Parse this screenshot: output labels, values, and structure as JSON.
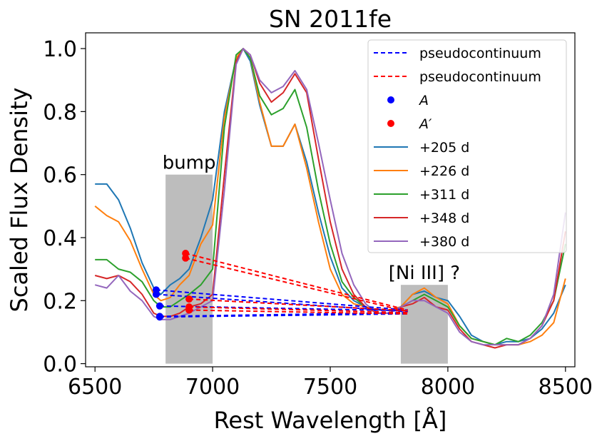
{
  "chart_data": {
    "type": "line",
    "title": "SN 2011fe",
    "xlabel": "Rest Wavelength [Å]",
    "ylabel": "Scaled Flux Density",
    "xlim": [
      6460,
      8540
    ],
    "ylim": [
      -0.01,
      1.05
    ],
    "xticks": [
      6500,
      7000,
      7500,
      8000,
      8500
    ],
    "xtick_labels": [
      "6500",
      "7000",
      "7500",
      "8000",
      "8500"
    ],
    "yticks": [
      0.0,
      0.2,
      0.4,
      0.6,
      0.8,
      1.0
    ],
    "ytick_labels": [
      "0.0",
      "0.2",
      "0.4",
      "0.6",
      "0.8",
      "1.0"
    ],
    "grid": false,
    "legend_position": "top-right",
    "regions": [
      {
        "label": "bump",
        "x0": 6800,
        "x1": 7000,
        "y0": 0.0,
        "y1": 0.6
      },
      {
        "label": "[Ni III] ?",
        "x0": 7800,
        "x1": 8000,
        "y0": 0.0,
        "y1": 0.25
      }
    ],
    "series": [
      {
        "name": "+205 d",
        "color": "#1f77b4",
        "x": [
          6500,
          6550,
          6600,
          6650,
          6700,
          6750,
          6780,
          6820,
          6860,
          6900,
          6950,
          7000,
          7050,
          7100,
          7130,
          7160,
          7200,
          7250,
          7300,
          7350,
          7400,
          7450,
          7500,
          7550,
          7600,
          7650,
          7700,
          7750,
          7800,
          7850,
          7900,
          7950,
          8000,
          8050,
          8100,
          8150,
          8200,
          8250,
          8300,
          8350,
          8400,
          8450,
          8500
        ],
        "y": [
          0.57,
          0.57,
          0.52,
          0.43,
          0.32,
          0.24,
          0.22,
          0.25,
          0.27,
          0.3,
          0.4,
          0.52,
          0.8,
          0.97,
          1.0,
          0.96,
          0.82,
          0.69,
          0.69,
          0.76,
          0.64,
          0.48,
          0.34,
          0.24,
          0.2,
          0.18,
          0.17,
          0.17,
          0.18,
          0.22,
          0.23,
          0.21,
          0.2,
          0.15,
          0.09,
          0.07,
          0.06,
          0.07,
          0.07,
          0.08,
          0.11,
          0.16,
          0.25
        ]
      },
      {
        "name": "+226 d",
        "color": "#ff7f0e",
        "x": [
          6500,
          6550,
          6600,
          6650,
          6700,
          6750,
          6780,
          6820,
          6860,
          6900,
          6950,
          7000,
          7050,
          7100,
          7130,
          7160,
          7200,
          7250,
          7300,
          7350,
          7400,
          7450,
          7500,
          7550,
          7600,
          7650,
          7700,
          7750,
          7800,
          7850,
          7900,
          7950,
          8000,
          8050,
          8100,
          8150,
          8200,
          8250,
          8300,
          8350,
          8400,
          8450,
          8500
        ],
        "y": [
          0.5,
          0.47,
          0.45,
          0.39,
          0.3,
          0.22,
          0.2,
          0.21,
          0.25,
          0.28,
          0.38,
          0.44,
          0.78,
          0.97,
          1.0,
          0.97,
          0.83,
          0.69,
          0.69,
          0.76,
          0.62,
          0.45,
          0.3,
          0.22,
          0.19,
          0.18,
          0.17,
          0.17,
          0.18,
          0.22,
          0.24,
          0.21,
          0.19,
          0.12,
          0.08,
          0.07,
          0.06,
          0.06,
          0.06,
          0.07,
          0.09,
          0.13,
          0.27
        ]
      },
      {
        "name": "+311 d",
        "color": "#2ca02c",
        "x": [
          6500,
          6550,
          6600,
          6650,
          6700,
          6750,
          6780,
          6820,
          6860,
          6900,
          6950,
          7000,
          7050,
          7100,
          7130,
          7160,
          7200,
          7250,
          7300,
          7350,
          7400,
          7450,
          7500,
          7550,
          7600,
          7650,
          7700,
          7750,
          7800,
          7850,
          7900,
          7950,
          8000,
          8050,
          8100,
          8150,
          8200,
          8250,
          8300,
          8350,
          8400,
          8450,
          8500
        ],
        "y": [
          0.33,
          0.33,
          0.3,
          0.29,
          0.26,
          0.2,
          0.18,
          0.18,
          0.2,
          0.22,
          0.25,
          0.3,
          0.75,
          0.98,
          1.0,
          0.97,
          0.85,
          0.79,
          0.81,
          0.87,
          0.75,
          0.55,
          0.38,
          0.26,
          0.21,
          0.18,
          0.16,
          0.16,
          0.18,
          0.2,
          0.22,
          0.2,
          0.18,
          0.12,
          0.08,
          0.07,
          0.06,
          0.08,
          0.07,
          0.09,
          0.13,
          0.2,
          0.38
        ]
      },
      {
        "name": "+348 d",
        "color": "#d62728",
        "x": [
          6500,
          6550,
          6600,
          6650,
          6700,
          6750,
          6780,
          6820,
          6860,
          6900,
          6950,
          7000,
          7050,
          7100,
          7130,
          7160,
          7200,
          7250,
          7300,
          7350,
          7400,
          7450,
          7500,
          7550,
          7600,
          7650,
          7700,
          7750,
          7800,
          7850,
          7900,
          7950,
          8000,
          8050,
          8100,
          8150,
          8200,
          8250,
          8300,
          8350,
          8400,
          8450,
          8500
        ],
        "y": [
          0.28,
          0.27,
          0.28,
          0.26,
          0.22,
          0.16,
          0.15,
          0.15,
          0.16,
          0.18,
          0.19,
          0.22,
          0.6,
          0.96,
          1.0,
          0.98,
          0.89,
          0.83,
          0.86,
          0.92,
          0.86,
          0.65,
          0.45,
          0.3,
          0.22,
          0.18,
          0.16,
          0.16,
          0.18,
          0.19,
          0.21,
          0.18,
          0.17,
          0.11,
          0.07,
          0.06,
          0.05,
          0.06,
          0.06,
          0.08,
          0.12,
          0.2,
          0.42
        ]
      },
      {
        "name": "+380 d",
        "color": "#9467bd",
        "x": [
          6500,
          6550,
          6600,
          6650,
          6700,
          6750,
          6780,
          6820,
          6860,
          6900,
          6950,
          7000,
          7050,
          7100,
          7130,
          7160,
          7200,
          7250,
          7300,
          7350,
          7400,
          7450,
          7500,
          7550,
          7600,
          7650,
          7700,
          7750,
          7800,
          7850,
          7900,
          7950,
          8000,
          8050,
          8100,
          8150,
          8200,
          8250,
          8300,
          8350,
          8400,
          8450,
          8500
        ],
        "y": [
          0.25,
          0.24,
          0.28,
          0.23,
          0.2,
          0.15,
          0.14,
          0.14,
          0.15,
          0.16,
          0.18,
          0.2,
          0.55,
          0.95,
          1.0,
          0.98,
          0.9,
          0.86,
          0.88,
          0.93,
          0.87,
          0.7,
          0.52,
          0.35,
          0.25,
          0.19,
          0.16,
          0.16,
          0.18,
          0.2,
          0.2,
          0.18,
          0.16,
          0.1,
          0.07,
          0.06,
          0.06,
          0.06,
          0.06,
          0.08,
          0.12,
          0.22,
          0.48
        ]
      }
    ],
    "pseudocontinuum": [
      {
        "legend": "pseudocontinuum",
        "color": "#0000ff",
        "style": "dashed",
        "segments": [
          [
            6760,
            0.234,
            7830,
            0.17
          ],
          [
            6760,
            0.22,
            7830,
            0.165
          ],
          [
            6775,
            0.183,
            7830,
            0.168
          ],
          [
            6775,
            0.15,
            7830,
            0.162
          ],
          [
            6775,
            0.148,
            7830,
            0.158
          ]
        ]
      },
      {
        "legend": "pseudocontinuum",
        "color": "#ff0000",
        "style": "dashed",
        "segments": [
          [
            6885,
            0.35,
            7830,
            0.17
          ],
          [
            6885,
            0.335,
            7830,
            0.165
          ],
          [
            6900,
            0.205,
            7830,
            0.168
          ],
          [
            6900,
            0.18,
            7830,
            0.162
          ],
          [
            6900,
            0.17,
            7830,
            0.158
          ]
        ]
      }
    ],
    "points_A": {
      "label": "A",
      "color": "#0000ff",
      "x": [
        6760,
        6760,
        6775,
        6775,
        6775
      ],
      "y": [
        0.234,
        0.22,
        0.183,
        0.15,
        0.148
      ]
    },
    "points_A_prime": {
      "label": "A′",
      "color": "#ff0000",
      "x": [
        6885,
        6885,
        6900,
        6900,
        6900
      ],
      "y": [
        0.35,
        0.335,
        0.205,
        0.18,
        0.17
      ]
    },
    "legend": [
      {
        "label": "pseudocontinuum",
        "kind": "dash",
        "color": "#0000ff"
      },
      {
        "label": "pseudocontinuum",
        "kind": "dash",
        "color": "#ff0000"
      },
      {
        "label": "A",
        "kind": "dot",
        "color": "#0000ff",
        "italic": true
      },
      {
        "label": "A′",
        "kind": "dot",
        "color": "#ff0000",
        "italic": true
      },
      {
        "label": "+205 d",
        "kind": "line",
        "color": "#1f77b4"
      },
      {
        "label": "+226 d",
        "kind": "line",
        "color": "#ff7f0e"
      },
      {
        "label": "+311 d",
        "kind": "line",
        "color": "#2ca02c"
      },
      {
        "label": "+348 d",
        "kind": "line",
        "color": "#d62728"
      },
      {
        "label": "+380 d",
        "kind": "line",
        "color": "#9467bd"
      }
    ]
  }
}
